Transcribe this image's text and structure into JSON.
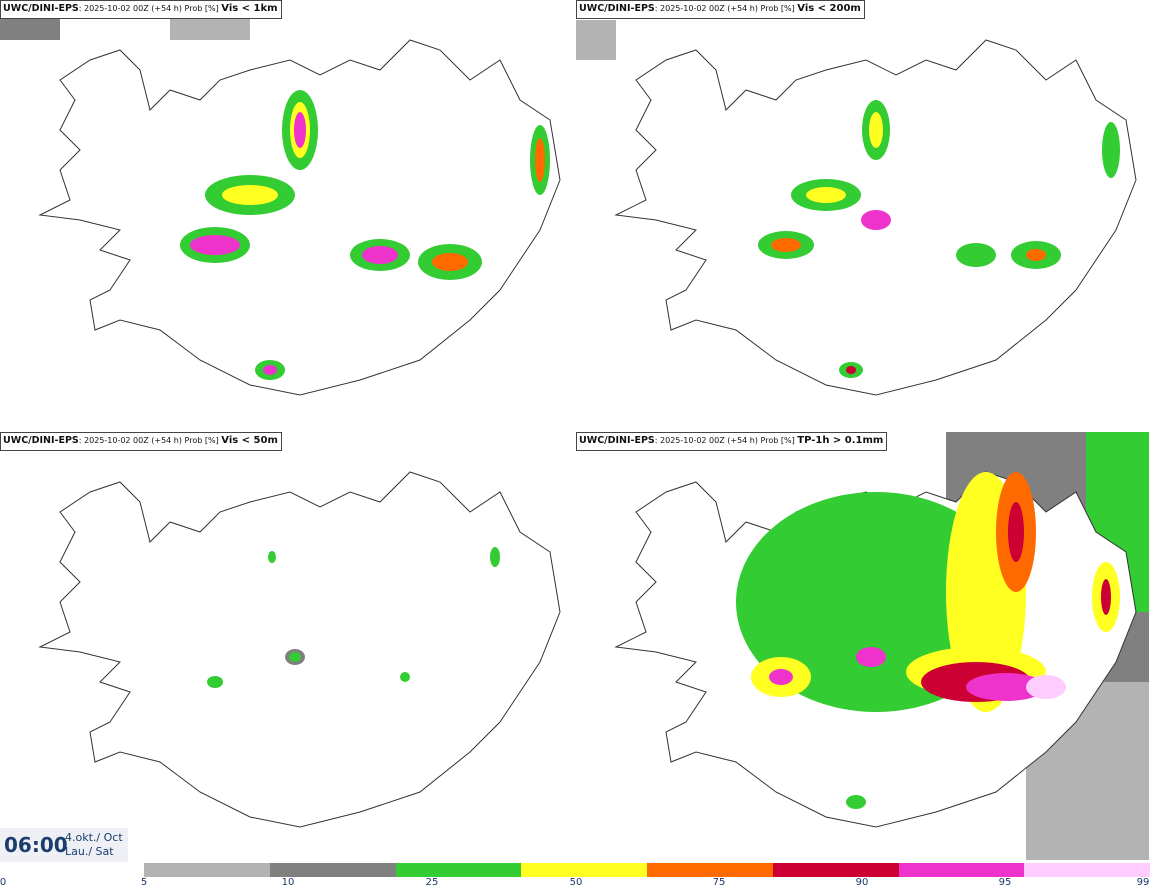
{
  "panels": [
    {
      "model": "UWC/DINI-EPS",
      "run": ": 2025-10-02 00Z (+54 h) Prob [%]",
      "variable": "Vis < 1km"
    },
    {
      "model": "UWC/DINI-EPS",
      "run": ": 2025-10-02 00Z (+54 h) Prob [%]",
      "variable": "Vis < 200m"
    },
    {
      "model": "UWC/DINI-EPS",
      "run": ": 2025-10-02 00Z (+54 h) Prob [%]",
      "variable": "Vis < 50m"
    },
    {
      "model": "UWC/DINI-EPS",
      "run": ": 2025-10-02 00Z (+54 h) Prob [%]",
      "variable": "TP-1h > 0.1mm"
    }
  ],
  "valid_time": {
    "time": "06:00",
    "date_line1": "4.okt./ Oct",
    "date_line2": "Lau./ Sat"
  },
  "legend": {
    "colors": [
      "#b3b3b3",
      "#808080",
      "#33cc33",
      "#ffff22",
      "#ff6a00",
      "#cc0033",
      "#ee33cc",
      "#ffccff"
    ],
    "ticks": [
      "0",
      "5",
      "10",
      "25",
      "50",
      "75",
      "90",
      "95",
      "99"
    ]
  }
}
